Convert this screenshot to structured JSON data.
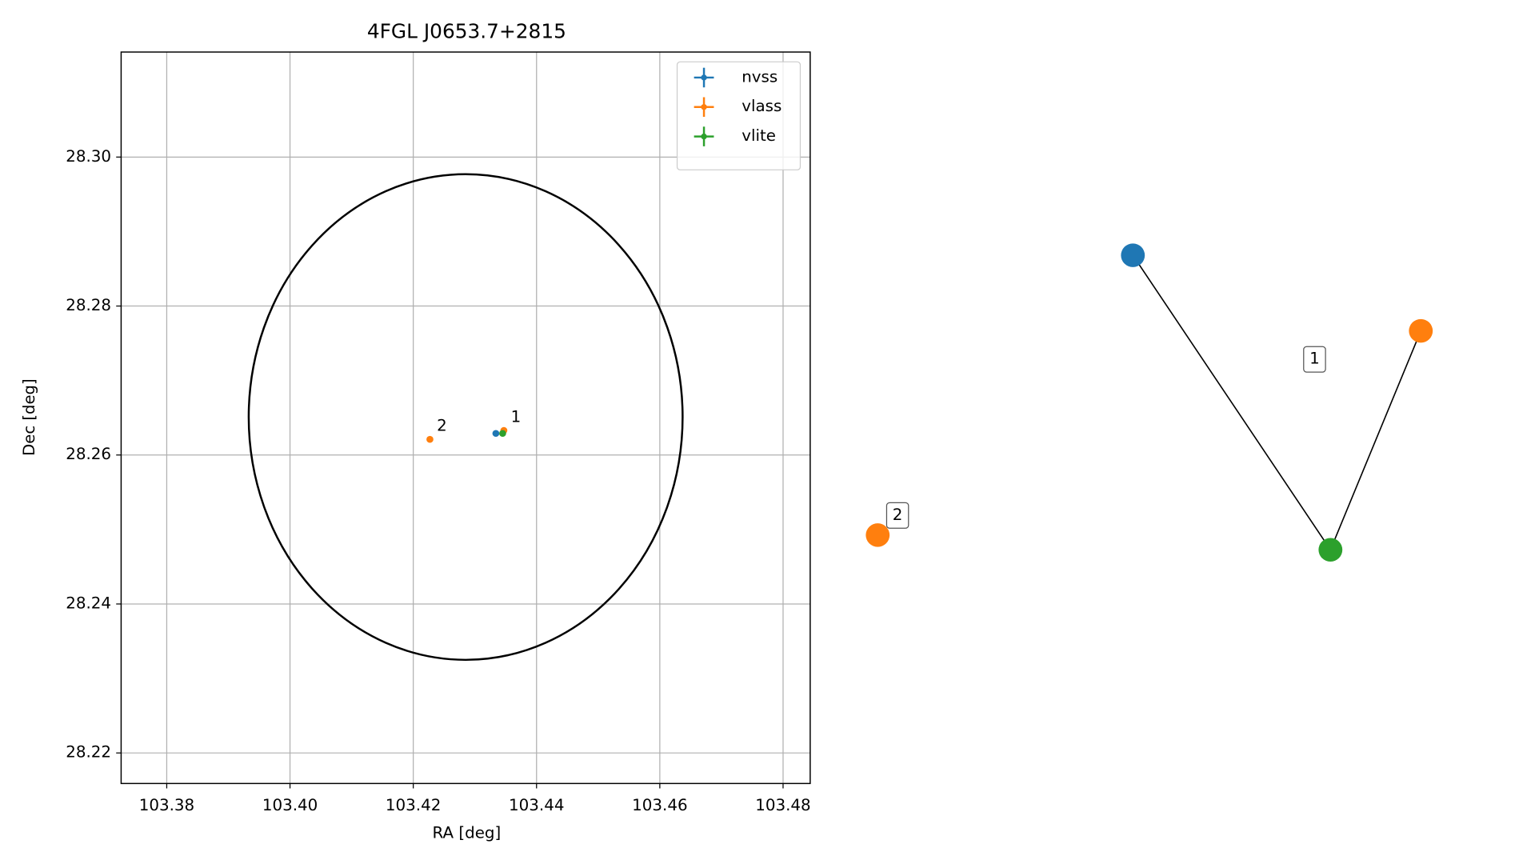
{
  "chart_data": [
    {
      "type": "scatter",
      "title": "4FGL J0653.7+2815",
      "xlabel": "RA [deg]",
      "ylabel": "Dec [deg]",
      "xlim": [
        103.3726,
        103.4844
      ],
      "ylim": [
        28.2159,
        28.3141
      ],
      "xticks": [
        103.38,
        {
          "value": 103.4,
          "label": "103.40"
        },
        103.42,
        103.44,
        103.46,
        103.48
      ],
      "yticks": [
        28.22,
        28.24,
        28.26,
        28.28,
        {
          "value": 28.3,
          "label": "28.30"
        }
      ],
      "grid": true,
      "legend": "upper right",
      "ellipse": {
        "ra": 103.4285,
        "dec": 28.2651,
        "width": 0.0352,
        "height": 0.0326,
        "color": "#000000"
      },
      "series": [
        {
          "name": "nvss",
          "color": "#1f77b4",
          "x": [
            103.4334
          ],
          "values": [
            28.2629
          ]
        },
        {
          "name": "vlass",
          "color": "#ff7f0e",
          "x": [
            103.4347,
            103.4227
          ],
          "values": [
            28.2633,
            28.2621
          ],
          "point_labels": [
            "1",
            "2"
          ]
        },
        {
          "name": "vlite",
          "color": "#2ca02c",
          "x": [
            103.4345
          ],
          "values": [
            28.2629
          ]
        }
      ]
    },
    {
      "type": "network",
      "nodes": [
        {
          "color": "#1f77b4"
        },
        {
          "color": "#2ca02c"
        },
        {
          "color": "#ff7f0e"
        },
        {
          "color": "#ff7f0e"
        }
      ],
      "edges": [
        [
          0,
          1
        ],
        [
          1,
          2
        ]
      ],
      "groups": [
        {
          "label": "1"
        },
        {
          "label": "2"
        }
      ]
    }
  ]
}
